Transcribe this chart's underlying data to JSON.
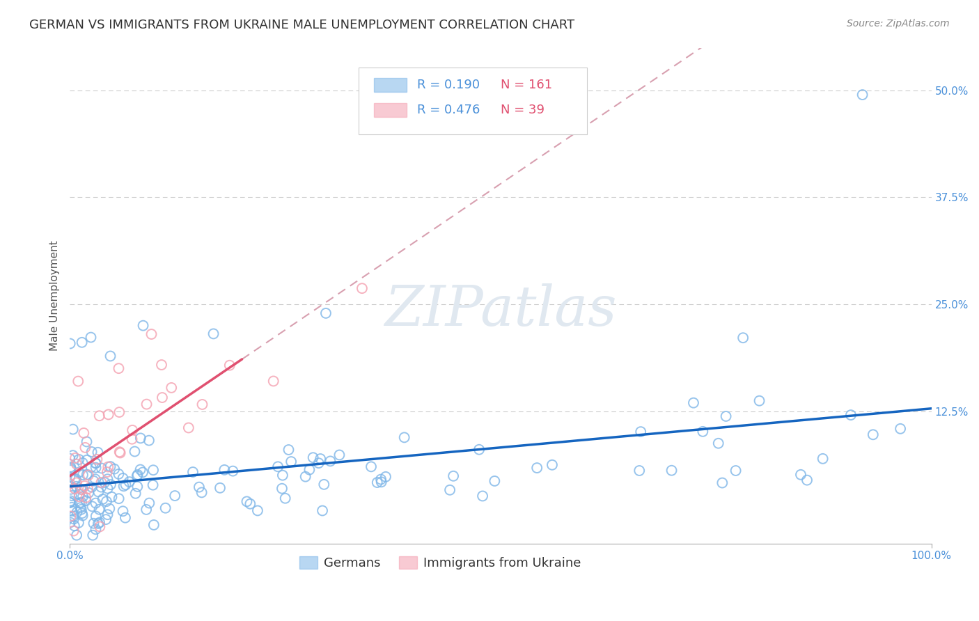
{
  "title": "GERMAN VS IMMIGRANTS FROM UKRAINE MALE UNEMPLOYMENT CORRELATION CHART",
  "source": "Source: ZipAtlas.com",
  "ylabel": "Male Unemployment",
  "xlim": [
    0.0,
    1.0
  ],
  "ylim": [
    -0.03,
    0.55
  ],
  "x_ticks": [
    0.0,
    1.0
  ],
  "x_tick_labels": [
    "0.0%",
    "100.0%"
  ],
  "y_ticks_right": [
    0.0,
    0.125,
    0.25,
    0.375,
    0.5
  ],
  "y_tick_labels_right": [
    "",
    "12.5%",
    "25.0%",
    "37.5%",
    "50.0%"
  ],
  "legend_r_blue": "R = 0.190",
  "legend_n_blue": "N = 161",
  "legend_r_pink": "R = 0.476",
  "legend_n_pink": "N = 39",
  "legend_label_blue": "Germans",
  "legend_label_pink": "Immigrants from Ukraine",
  "blue_color": "#7EB6E8",
  "pink_color": "#F4A0B0",
  "blue_line_color": "#1565C0",
  "pink_line_color": "#E05070",
  "pink_dash_color": "#D8A0B0",
  "watermark": "ZIPatlas",
  "background_color": "#ffffff",
  "title_fontsize": 13,
  "axis_label_fontsize": 11,
  "tick_fontsize": 11,
  "source_fontsize": 10,
  "blue_R": 0.19,
  "blue_N": 161,
  "pink_R": 0.476,
  "pink_N": 39
}
